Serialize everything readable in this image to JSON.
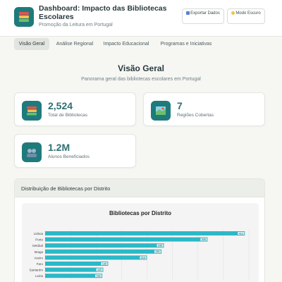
{
  "header": {
    "title": "Dashboard: Impacto das Bibliotecas Escolares",
    "subtitle": "Promoção da Leitura em Portugal",
    "export_label": "Exportar Dados",
    "export_icon": "chart-icon",
    "dark_label": "Modo Escuro",
    "dark_icon": "moon-icon",
    "logo_icon": "books-icon"
  },
  "tabs": [
    {
      "label": "Visão Geral",
      "active": true
    },
    {
      "label": "Análise Regional",
      "active": false
    },
    {
      "label": "Impacto Educacional",
      "active": false
    },
    {
      "label": "Programas e Iniciativas",
      "active": false
    }
  ],
  "overview": {
    "title": "Visão Geral",
    "subtitle": "Panorama geral das bibliotecas escolares em Portugal"
  },
  "stats": [
    {
      "value": "2,524",
      "label": "Total de Bibliotecas",
      "icon": "books-icon"
    },
    {
      "value": "7",
      "label": "Regiões Cobertas",
      "icon": "map-icon"
    },
    {
      "value": "1.2M",
      "label": "Alunos Beneficiados",
      "icon": "students-icon"
    }
  ],
  "distribution": {
    "title": "Distribuição de Bibliotecas por Distrito"
  },
  "colors": {
    "accent": "#1f7a7c",
    "bar": "#2cb8c6",
    "active_tab": "#e2e5df"
  },
  "chart_data": {
    "type": "bar",
    "orientation": "horizontal",
    "title": "Bibliotecas por Distrito",
    "categories": [
      "Lisboa",
      "Porto",
      "Setúbal",
      "Braga",
      "Aveiro",
      "Faro",
      "Santarém",
      "Leiria"
    ],
    "values": [
      412,
      335,
      245,
      240,
      210,
      130,
      120,
      118
    ],
    "value_labels": [
      "412",
      "335",
      "245",
      "240",
      "210",
      "130",
      "120",
      "118"
    ],
    "grid": true
  }
}
